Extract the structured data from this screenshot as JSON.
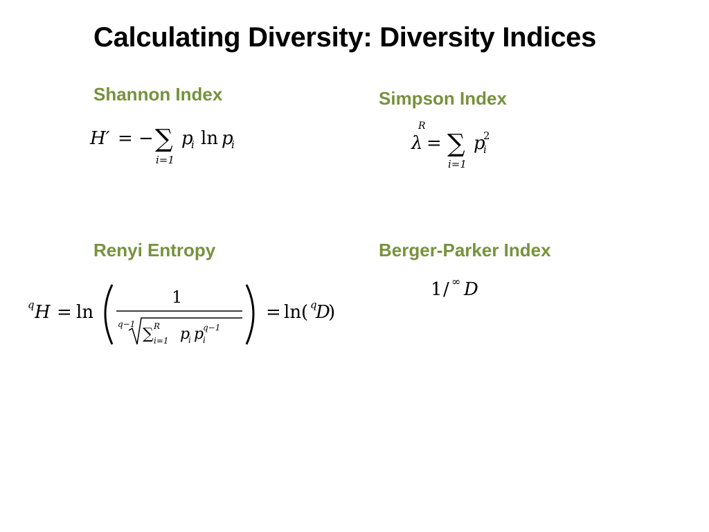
{
  "slide": {
    "title": "Calculating Diversity: Diversity Indices",
    "accent_color": "#76923c"
  },
  "sections": {
    "shannon": {
      "heading": "Shannon Index"
    },
    "simpson": {
      "heading": "Simpson Index"
    },
    "renyi": {
      "heading": "Renyi Entropy"
    },
    "berger_parker": {
      "heading": "Berger-Parker Index"
    }
  },
  "formulas": {
    "shannon": {
      "lhs": "H′",
      "equals": "=",
      "minus": "−",
      "sum_symbol": "∑",
      "sum_lower": "i=1",
      "p": "p",
      "sub_i": "i",
      "ln": "ln"
    },
    "simpson": {
      "lhs": "λ",
      "equals": "=",
      "sum_symbol": "∑",
      "sum_upper": "R",
      "sum_lower": "i=1",
      "p": "p",
      "sub_i": "i",
      "sup_2": "2"
    },
    "renyi": {
      "pre_sup_q": "q",
      "H": "H",
      "equals": "=",
      "ln": "ln",
      "numerator": "1",
      "root_index": "q−1",
      "sum_symbol": "∑",
      "sum_upper": "R",
      "sum_lower": "i=1",
      "p": "p",
      "sub_i": "i",
      "sup_q1": "q−1",
      "equals2": "=",
      "ln2": "ln(",
      "D": "D",
      "close": ")"
    },
    "berger_parker": {
      "one": "1",
      "slash": "/",
      "infinity": "∞",
      "D": "D"
    }
  }
}
